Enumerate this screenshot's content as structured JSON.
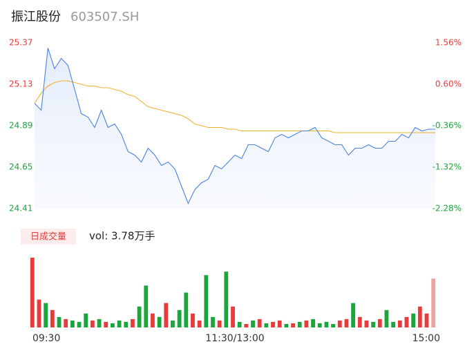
{
  "header": {
    "name": "振江股份",
    "code": "603507.SH"
  },
  "chart_data": [
    {
      "type": "line",
      "values": [
        25.02,
        24.98,
        25.34,
        25.22,
        25.28,
        25.24,
        25.1,
        24.96,
        24.94,
        24.88,
        24.98,
        24.88,
        24.9,
        24.84,
        24.74,
        24.72,
        24.68,
        24.76,
        24.72,
        24.66,
        24.68,
        24.64,
        24.54,
        24.44,
        24.52,
        24.56,
        24.58,
        24.66,
        24.64,
        24.68,
        24.72,
        24.7,
        24.78,
        24.78,
        24.76,
        24.74,
        24.82,
        24.84,
        24.82,
        24.84,
        24.86,
        24.86,
        24.88,
        24.82,
        24.8,
        24.78,
        24.78,
        24.72,
        24.76,
        24.76,
        24.78,
        24.76,
        24.76,
        24.8,
        24.8,
        24.84,
        24.82,
        24.88,
        24.86,
        24.87,
        24.87
      ],
      "avg": [
        25.02,
        25.08,
        25.12,
        25.14,
        25.15,
        25.15,
        25.14,
        25.13,
        25.12,
        25.12,
        25.11,
        25.11,
        25.1,
        25.09,
        25.07,
        25.06,
        25.03,
        25.0,
        24.99,
        24.98,
        24.97,
        24.96,
        24.95,
        24.93,
        24.9,
        24.89,
        24.88,
        24.88,
        24.88,
        24.87,
        24.87,
        24.86,
        24.86,
        24.86,
        24.86,
        24.86,
        24.86,
        24.86,
        24.86,
        24.86,
        24.86,
        24.86,
        24.86,
        24.86,
        24.86,
        24.85,
        24.85,
        24.85,
        24.85,
        24.85,
        24.85,
        24.85,
        24.85,
        24.85,
        24.85,
        24.85,
        24.85,
        24.85,
        24.85,
        24.85,
        24.85
      ],
      "color": "#4a80e0",
      "avg_color": "#f0b030",
      "xlim": [
        0,
        60
      ],
      "xticks": [
        {
          "value": 0,
          "label": "09:30"
        },
        {
          "value": 30,
          "label": "11:30/13:00"
        },
        {
          "value": 60,
          "label": "15:00"
        }
      ],
      "ylim": [
        24.41,
        25.37
      ],
      "yticks": [
        25.37,
        25.13,
        24.89,
        24.65,
        24.41
      ],
      "y2lim": [
        -2.28,
        1.56
      ],
      "y2ticks": [
        {
          "value": 1.56,
          "label": "1.56%"
        },
        {
          "value": 0.6,
          "label": "0.60%"
        },
        {
          "value": -0.36,
          "label": "-0.36%"
        },
        {
          "value": -1.32,
          "label": "-1.32%"
        },
        {
          "value": -2.28,
          "label": "-2.28%"
        }
      ]
    },
    {
      "type": "bar",
      "button": "日成交量",
      "label": "vol: 3.78万手",
      "values": [
        100,
        40,
        35,
        25,
        15,
        12,
        10,
        8,
        20,
        10,
        12,
        8,
        6,
        10,
        8,
        12,
        30,
        60,
        20,
        15,
        35,
        10,
        25,
        50,
        20,
        10,
        75,
        15,
        10,
        80,
        30,
        8,
        5,
        10,
        12,
        6,
        8,
        10,
        5,
        6,
        8,
        10,
        12,
        6,
        8,
        5,
        10,
        12,
        35,
        15,
        10,
        8,
        12,
        25,
        8,
        10,
        15,
        20,
        30,
        20,
        70
      ],
      "colors": [
        "#e83b3b",
        "#e83b3b",
        "#1aa63a",
        "#e83b3b",
        "#1aa63a",
        "#e83b3b",
        "#1aa63a",
        "#1aa63a",
        "#1aa63a",
        "#e83b3b",
        "#1aa63a",
        "#e83b3b",
        "#1aa63a",
        "#1aa63a",
        "#1aa63a",
        "#e83b3b",
        "#1aa63a",
        "#1aa63a",
        "#e83b3b",
        "#1aa63a",
        "#e83b3b",
        "#1aa63a",
        "#1aa63a",
        "#1aa63a",
        "#e83b3b",
        "#e83b3b",
        "#1aa63a",
        "#1aa63a",
        "#e83b3b",
        "#1aa63a",
        "#e83b3b",
        "#1aa63a",
        "#e83b3b",
        "#1aa63a",
        "#e83b3b",
        "#1aa63a",
        "#e83b3b",
        "#e83b3b",
        "#1aa63a",
        "#e83b3b",
        "#1aa63a",
        "#e83b3b",
        "#1aa63a",
        "#1aa63a",
        "#1aa63a",
        "#1aa63a",
        "#e83b3b",
        "#e83b3b",
        "#1aa63a",
        "#e83b3b",
        "#e83b3b",
        "#1aa63a",
        "#e83b3b",
        "#1aa63a",
        "#1aa63a",
        "#e83b3b",
        "#e83b3b",
        "#1aa63a",
        "#e83b3b",
        "#e83b3b",
        "#f4a0a0"
      ],
      "ylim": [
        0,
        100
      ]
    }
  ]
}
